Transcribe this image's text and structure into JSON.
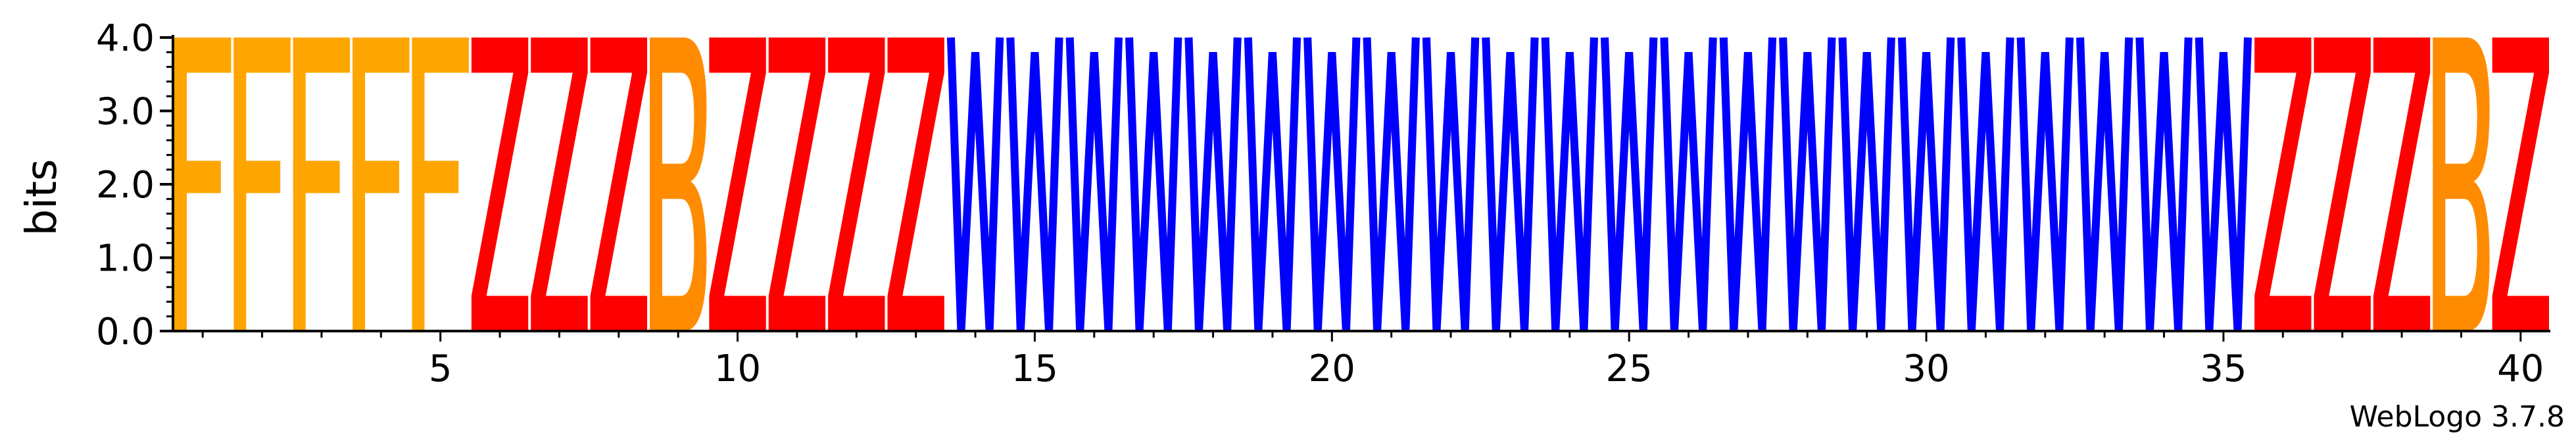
{
  "credit": "WebLogo 3.7.8",
  "chart_data": {
    "type": "sequence-logo",
    "ylabel": "bits",
    "ylim": [
      0,
      4.0
    ],
    "yticks": [
      "0.0",
      "1.0",
      "2.0",
      "3.0",
      "4.0"
    ],
    "xticks": [
      5,
      10,
      15,
      20,
      25,
      30,
      35,
      40
    ],
    "positions": [
      1,
      2,
      3,
      4,
      5,
      6,
      7,
      8,
      9,
      10,
      11,
      12,
      13,
      14,
      15,
      16,
      17,
      18,
      19,
      20,
      21,
      22,
      23,
      24,
      25,
      26,
      27,
      28,
      29,
      30,
      31,
      32,
      33,
      34,
      35,
      36,
      37,
      38,
      39,
      40
    ],
    "letters": [
      "F",
      "F",
      "F",
      "F",
      "F",
      "Z",
      "Z",
      "Z",
      "B",
      "Z",
      "Z",
      "Z",
      "Z",
      "W",
      "W",
      "W",
      "W",
      "W",
      "W",
      "W",
      "W",
      "W",
      "W",
      "W",
      "W",
      "W",
      "W",
      "W",
      "W",
      "W",
      "W",
      "W",
      "W",
      "W",
      "W",
      "Z",
      "Z",
      "Z",
      "B",
      "Z"
    ],
    "heights_bits": [
      4.0,
      4.0,
      4.0,
      4.0,
      4.0,
      4.0,
      4.0,
      4.0,
      4.0,
      4.0,
      4.0,
      4.0,
      4.0,
      4.0,
      4.0,
      4.0,
      4.0,
      4.0,
      4.0,
      4.0,
      4.0,
      4.0,
      4.0,
      4.0,
      4.0,
      4.0,
      4.0,
      4.0,
      4.0,
      4.0,
      4.0,
      4.0,
      4.0,
      4.0,
      4.0,
      4.0,
      4.0,
      4.0,
      4.0,
      4.0
    ],
    "letter_colors": {
      "F": "#FFA500",
      "Z": "#FF0000",
      "B": "#FF8C00",
      "W": "#0000FF"
    }
  }
}
